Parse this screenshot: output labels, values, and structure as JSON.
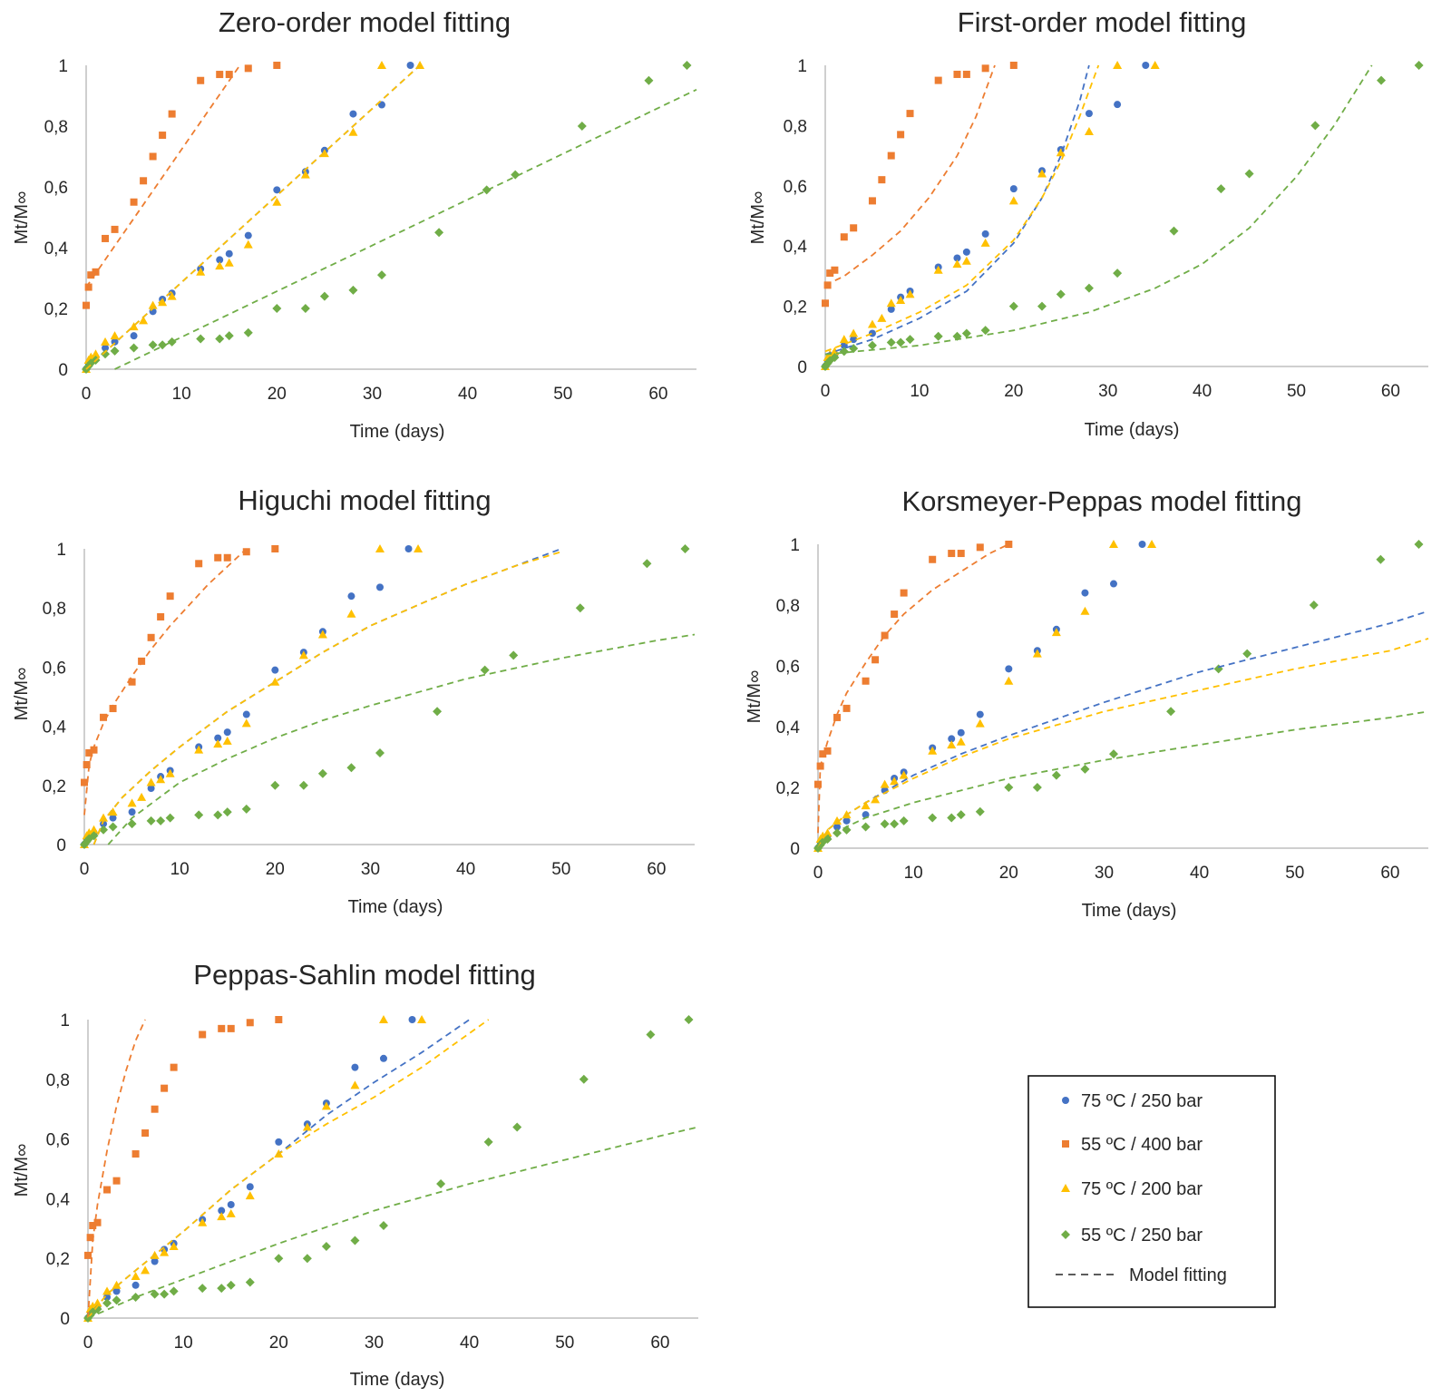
{
  "colors": {
    "blue": "#4472c4",
    "orange": "#ed7d31",
    "yellow": "#ffc000",
    "green": "#70ad47",
    "axis": "#bfbfbf",
    "text": "#262626"
  },
  "legend": {
    "items": [
      {
        "label": "75 ºC / 250 bar",
        "marker": "circle",
        "color": "#4472c4"
      },
      {
        "label": "55 ºC / 400 bar",
        "marker": "square",
        "color": "#ed7d31"
      },
      {
        "label": "75 ºC / 200 bar",
        "marker": "triangle",
        "color": "#ffc000"
      },
      {
        "label": "55 ºC / 250 bar",
        "marker": "diamond",
        "color": "#70ad47"
      },
      {
        "label": "Model fitting",
        "marker": "dashed-line",
        "color": "#262626"
      }
    ]
  },
  "experimental": [
    {
      "name": "75 ºC / 250 bar",
      "marker": "circle",
      "color": "#4472c4",
      "x": [
        0,
        0.25,
        0.5,
        1,
        2,
        3,
        5,
        7,
        8,
        9,
        12,
        14,
        15,
        17,
        20,
        23,
        25,
        28,
        31,
        34
      ],
      "y": [
        0,
        0.02,
        0.03,
        0.04,
        0.07,
        0.09,
        0.11,
        0.19,
        0.23,
        0.25,
        0.33,
        0.36,
        0.38,
        0.44,
        0.59,
        0.65,
        0.72,
        0.84,
        0.87,
        1.0
      ]
    },
    {
      "name": "55 ºC / 400 bar",
      "marker": "square",
      "color": "#ed7d31",
      "x": [
        0,
        0.25,
        0.5,
        1,
        2,
        3,
        5,
        6,
        7,
        8,
        9,
        12,
        14,
        15,
        17,
        20
      ],
      "y": [
        0.21,
        0.27,
        0.31,
        0.32,
        0.43,
        0.46,
        0.55,
        0.62,
        0.7,
        0.77,
        0.84,
        0.95,
        0.97,
        0.97,
        0.99,
        1.0
      ]
    },
    {
      "name": "75 ºC / 200 bar",
      "marker": "triangle",
      "color": "#ffc000",
      "x": [
        0,
        0.25,
        0.5,
        1,
        2,
        3,
        5,
        6,
        7,
        8,
        9,
        12,
        14,
        15,
        17,
        20,
        23,
        25,
        28,
        31,
        35
      ],
      "y": [
        0,
        0.03,
        0.04,
        0.05,
        0.09,
        0.11,
        0.14,
        0.16,
        0.21,
        0.22,
        0.24,
        0.32,
        0.34,
        0.35,
        0.41,
        0.55,
        0.64,
        0.71,
        0.78,
        1.0,
        1.0
      ]
    },
    {
      "name": "55 ºC / 250 bar",
      "marker": "diamond",
      "color": "#70ad47",
      "x": [
        0,
        0.25,
        0.5,
        1,
        2,
        3,
        5,
        7,
        8,
        9,
        12,
        14,
        15,
        17,
        20,
        23,
        25,
        28,
        31,
        37,
        42,
        45,
        52,
        59,
        63
      ],
      "y": [
        0,
        0.01,
        0.02,
        0.03,
        0.05,
        0.06,
        0.07,
        0.08,
        0.08,
        0.09,
        0.1,
        0.1,
        0.11,
        0.12,
        0.2,
        0.2,
        0.24,
        0.26,
        0.31,
        0.45,
        0.59,
        0.64,
        0.8,
        0.95,
        1.0
      ]
    }
  ],
  "chart_data": [
    {
      "type": "scatter",
      "title": "Zero-order model fitting",
      "xlabel": "Time (days)",
      "ylabel": "Mt/M∞",
      "xlim": [
        0,
        64
      ],
      "ylim": [
        0,
        1
      ],
      "xticks": [
        "0",
        "10",
        "20",
        "30",
        "40",
        "50",
        "60"
      ],
      "yticks": [
        "0",
        "0,2",
        "0,4",
        "0,6",
        "0,8",
        "1"
      ],
      "fits": [
        {
          "color": "#ed7d31",
          "x": [
            0,
            16
          ],
          "y": [
            0.27,
            0.995
          ]
        },
        {
          "color": "#4472c4",
          "x": [
            0,
            35
          ],
          "y": [
            0.0,
            1.0
          ]
        },
        {
          "color": "#ffc000",
          "x": [
            0,
            35
          ],
          "y": [
            0.0,
            1.0
          ]
        },
        {
          "color": "#70ad47",
          "x": [
            3,
            64
          ],
          "y": [
            0.0,
            0.92
          ]
        }
      ]
    },
    {
      "type": "scatter",
      "title": "First-order model fitting",
      "xlabel": "Time (days)",
      "ylabel": "Mt/M∞",
      "xlim": [
        0,
        64
      ],
      "ylim": [
        0,
        1
      ],
      "xticks": [
        "0",
        "10",
        "20",
        "30",
        "40",
        "50",
        "60"
      ],
      "yticks": [
        "0",
        "0,2",
        "0,4",
        "0,6",
        "0,8",
        "1"
      ],
      "fits": [
        {
          "color": "#ed7d31",
          "x": [
            0,
            2,
            5,
            8,
            11,
            14,
            16,
            18
          ],
          "y": [
            0.27,
            0.3,
            0.37,
            0.45,
            0.56,
            0.7,
            0.83,
            1.0
          ]
        },
        {
          "color": "#4472c4",
          "x": [
            0,
            5,
            10,
            15,
            20,
            23,
            25,
            27,
            28
          ],
          "y": [
            0.04,
            0.09,
            0.16,
            0.25,
            0.41,
            0.56,
            0.7,
            0.88,
            1.0
          ]
        },
        {
          "color": "#ffc000",
          "x": [
            0,
            5,
            10,
            15,
            20,
            23,
            25,
            27,
            29
          ],
          "y": [
            0.05,
            0.11,
            0.18,
            0.27,
            0.42,
            0.56,
            0.68,
            0.83,
            1.0
          ]
        },
        {
          "color": "#70ad47",
          "x": [
            0,
            10,
            20,
            28,
            35,
            40,
            45,
            50,
            54,
            58
          ],
          "y": [
            0.04,
            0.07,
            0.12,
            0.18,
            0.26,
            0.34,
            0.46,
            0.63,
            0.8,
            1.0
          ]
        }
      ]
    },
    {
      "type": "scatter",
      "title": "Higuchi model fitting",
      "xlabel": "Time (days)",
      "ylabel": "Mt/M∞",
      "xlim": [
        0,
        64
      ],
      "ylim": [
        0,
        1
      ],
      "xticks": [
        "0",
        "10",
        "20",
        "30",
        "40",
        "50",
        "60"
      ],
      "yticks": [
        "0",
        "0,2",
        "0,4",
        "0,6",
        "0,8",
        "1"
      ],
      "fits": [
        {
          "color": "#ed7d31",
          "x": [
            0,
            0.5,
            1,
            2,
            3,
            5,
            7,
            9,
            11,
            13,
            15,
            17
          ],
          "y": [
            0.1,
            0.27,
            0.33,
            0.41,
            0.47,
            0.57,
            0.66,
            0.74,
            0.81,
            0.88,
            0.94,
            1.0
          ]
        },
        {
          "color": "#4472c4",
          "x": [
            1,
            2,
            4,
            7,
            10,
            15,
            20,
            25,
            30,
            35,
            40,
            45,
            50
          ],
          "y": [
            0.0,
            0.08,
            0.16,
            0.25,
            0.33,
            0.45,
            0.55,
            0.65,
            0.74,
            0.81,
            0.88,
            0.94,
            1.0
          ]
        },
        {
          "color": "#ffc000",
          "x": [
            1,
            2,
            4,
            7,
            10,
            15,
            20,
            25,
            30,
            35,
            40,
            45,
            50
          ],
          "y": [
            0.0,
            0.08,
            0.16,
            0.25,
            0.33,
            0.45,
            0.55,
            0.65,
            0.74,
            0.81,
            0.88,
            0.94,
            0.99
          ]
        },
        {
          "color": "#70ad47",
          "x": [
            2.5,
            5,
            10,
            15,
            20,
            25,
            30,
            40,
            50,
            60,
            64
          ],
          "y": [
            0.0,
            0.09,
            0.21,
            0.29,
            0.36,
            0.42,
            0.47,
            0.56,
            0.63,
            0.69,
            0.71
          ]
        }
      ]
    },
    {
      "type": "scatter",
      "title": "Korsmeyer-Peppas model fitting",
      "xlabel": "Time (days)",
      "ylabel": "Mt/M∞",
      "xlim": [
        0,
        64
      ],
      "ylim": [
        0,
        1
      ],
      "xticks": [
        "0",
        "10",
        "20",
        "30",
        "40",
        "50",
        "60"
      ],
      "yticks": [
        "0",
        "0,2",
        "0,4",
        "0,6",
        "0,8",
        "1"
      ],
      "fits": [
        {
          "color": "#ed7d31",
          "x": [
            0,
            0.25,
            1,
            2,
            3,
            5,
            7,
            9,
            12,
            15,
            18,
            20
          ],
          "y": [
            0.05,
            0.27,
            0.35,
            0.44,
            0.51,
            0.61,
            0.7,
            0.77,
            0.85,
            0.91,
            0.97,
            1.0
          ]
        },
        {
          "color": "#4472c4",
          "x": [
            0,
            1,
            3,
            5,
            10,
            15,
            20,
            30,
            40,
            50,
            60,
            64
          ],
          "y": [
            0.0,
            0.06,
            0.11,
            0.15,
            0.24,
            0.31,
            0.37,
            0.48,
            0.58,
            0.66,
            0.74,
            0.78
          ]
        },
        {
          "color": "#ffc000",
          "x": [
            0,
            1,
            3,
            5,
            10,
            15,
            20,
            30,
            40,
            50,
            60,
            64
          ],
          "y": [
            0.0,
            0.06,
            0.11,
            0.15,
            0.23,
            0.3,
            0.36,
            0.45,
            0.52,
            0.59,
            0.65,
            0.69
          ]
        },
        {
          "color": "#70ad47",
          "x": [
            0,
            1,
            3,
            5,
            10,
            15,
            20,
            30,
            40,
            50,
            60,
            64
          ],
          "y": [
            0.0,
            0.04,
            0.07,
            0.1,
            0.15,
            0.19,
            0.23,
            0.29,
            0.34,
            0.39,
            0.43,
            0.45
          ]
        }
      ]
    },
    {
      "type": "scatter",
      "title": "Peppas-Sahlin model fitting",
      "xlabel": "Time (days)",
      "ylabel": "Mt/M∞",
      "xlim": [
        0,
        64
      ],
      "ylim": [
        0,
        1
      ],
      "xticks": [
        "0",
        "10",
        "20",
        "30",
        "40",
        "50",
        "60"
      ],
      "yticks": [
        "0",
        "0,2",
        "0,4",
        "0,6",
        "0,8",
        "1"
      ],
      "fits": [
        {
          "color": "#ed7d31",
          "x": [
            0,
            0.5,
            1,
            2,
            3,
            4,
            5,
            6
          ],
          "y": [
            0.0,
            0.26,
            0.38,
            0.56,
            0.71,
            0.83,
            0.93,
            1.0
          ]
        },
        {
          "color": "#4472c4",
          "x": [
            0,
            2,
            5,
            10,
            15,
            20,
            25,
            30,
            35,
            40
          ],
          "y": [
            0.0,
            0.08,
            0.16,
            0.29,
            0.43,
            0.55,
            0.68,
            0.79,
            0.89,
            1.0
          ]
        },
        {
          "color": "#ffc000",
          "x": [
            0,
            2,
            5,
            10,
            15,
            20,
            25,
            30,
            35,
            42
          ],
          "y": [
            0.0,
            0.08,
            0.16,
            0.29,
            0.43,
            0.55,
            0.65,
            0.74,
            0.84,
            1.0
          ]
        },
        {
          "color": "#70ad47",
          "x": [
            0,
            5,
            10,
            20,
            30,
            40,
            50,
            60,
            64
          ],
          "y": [
            0.0,
            0.07,
            0.13,
            0.25,
            0.36,
            0.45,
            0.53,
            0.61,
            0.64
          ]
        }
      ]
    }
  ]
}
